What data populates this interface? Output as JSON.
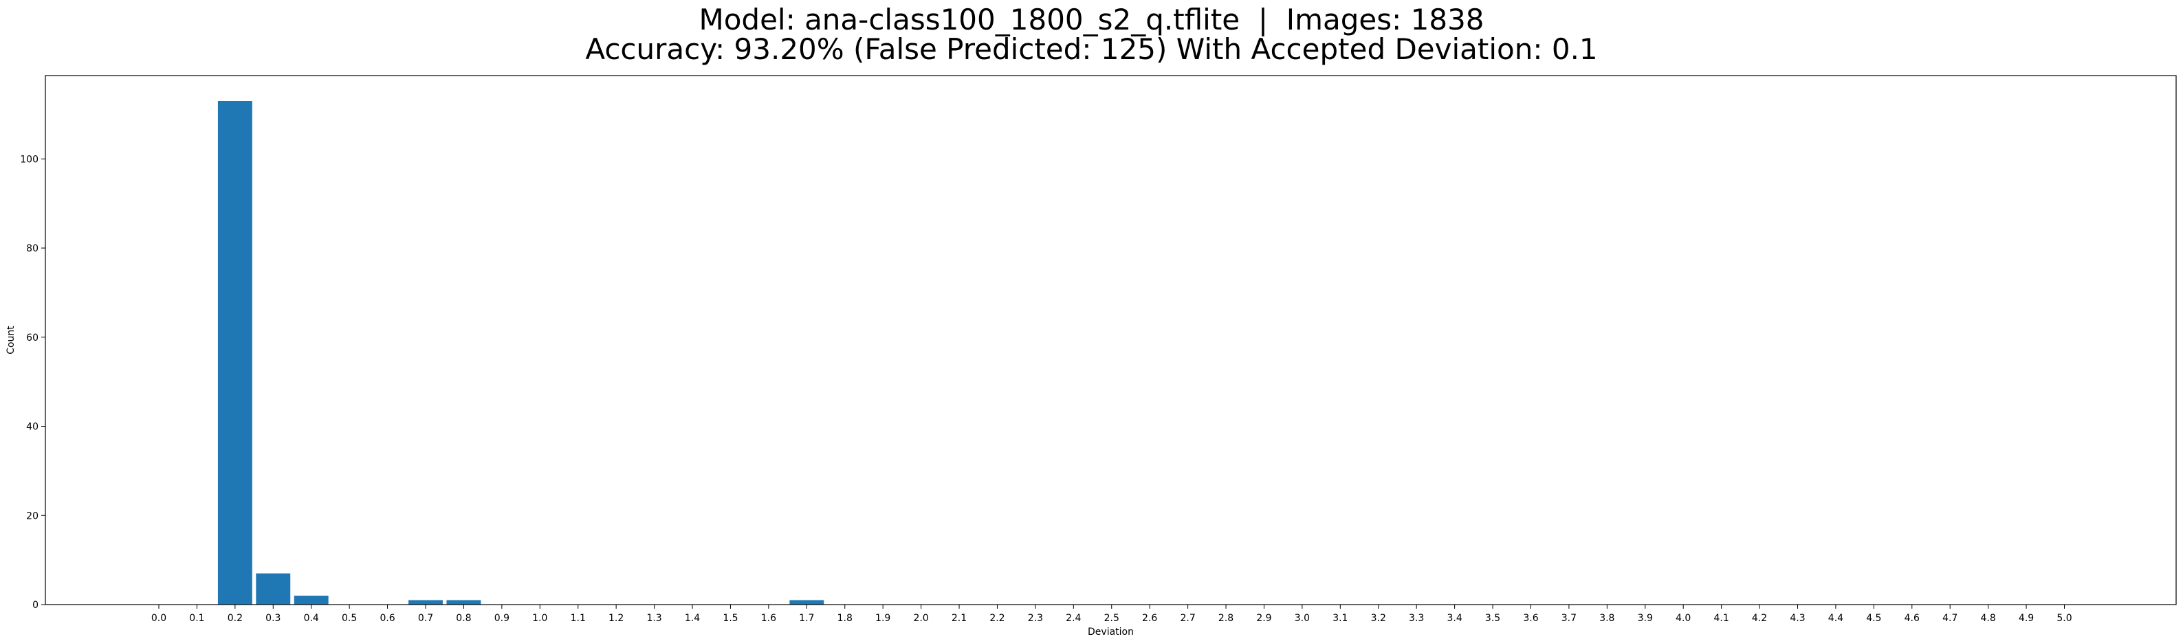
{
  "chart_data": {
    "type": "bar",
    "title_line1": "Model: ana-class100_1800_s2_q.tflite  |  Images: 1838",
    "title_line2": "Accuracy: 93.20% (False Predicted: 125) With Accepted Deviation: 0.1",
    "xlabel": "Deviation",
    "ylabel": "Count",
    "ylim": [
      0,
      118.7
    ],
    "yticks": [
      0,
      20,
      40,
      60,
      80,
      100
    ],
    "grid": false,
    "bar_color": "#1f77b4",
    "categories": [
      "0.0",
      "0.1",
      "0.2",
      "0.3",
      "0.4",
      "0.5",
      "0.6",
      "0.7",
      "0.8",
      "0.9",
      "1.0",
      "1.1",
      "1.2",
      "1.3",
      "1.4",
      "1.5",
      "1.6",
      "1.7",
      "1.8",
      "1.9",
      "2.0",
      "2.1",
      "2.2",
      "2.3",
      "2.4",
      "2.5",
      "2.6",
      "2.7",
      "2.8",
      "2.9",
      "3.0",
      "3.1",
      "3.2",
      "3.3",
      "3.4",
      "3.5",
      "3.6",
      "3.7",
      "3.8",
      "3.9",
      "4.0",
      "4.1",
      "4.2",
      "4.3",
      "4.4",
      "4.5",
      "4.6",
      "4.7",
      "4.8",
      "4.9",
      "5.0"
    ],
    "values": [
      0,
      0,
      113,
      7,
      2,
      0,
      0,
      1,
      1,
      0,
      0,
      0,
      0,
      0,
      0,
      0,
      0,
      1,
      0,
      0,
      0,
      0,
      0,
      0,
      0,
      0,
      0,
      0,
      0,
      0,
      0,
      0,
      0,
      0,
      0,
      0,
      0,
      0,
      0,
      0,
      0,
      0,
      0,
      0,
      0,
      0,
      0,
      0,
      0,
      0,
      0
    ]
  }
}
